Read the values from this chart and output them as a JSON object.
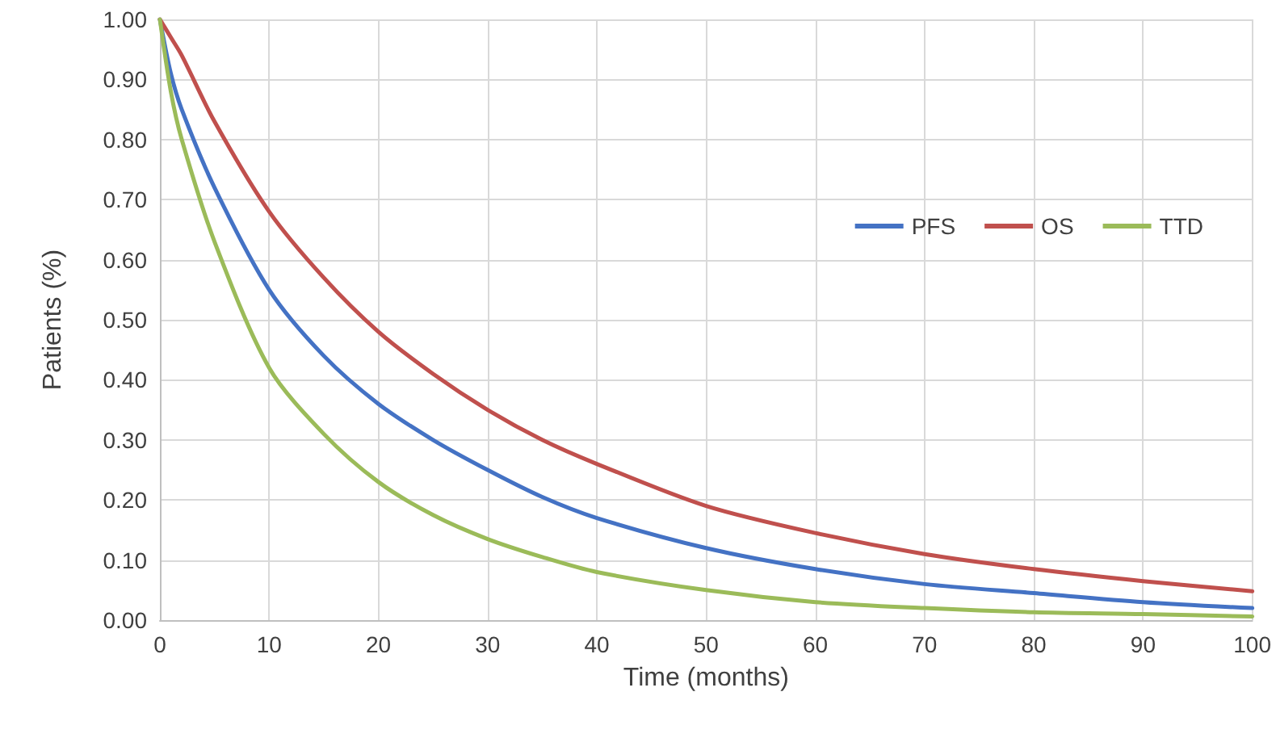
{
  "chart_data": {
    "type": "line",
    "xlabel": "Time (months)",
    "ylabel": "Patients (%)",
    "x": [
      0,
      1,
      2,
      5,
      10,
      15,
      20,
      25,
      30,
      35,
      40,
      50,
      60,
      70,
      80,
      90,
      100
    ],
    "series": [
      {
        "name": "PFS",
        "color": "#4472c4",
        "values": [
          1.0,
          0.91,
          0.85,
          0.72,
          0.55,
          0.44,
          0.36,
          0.3,
          0.25,
          0.205,
          0.17,
          0.12,
          0.085,
          0.06,
          0.045,
          0.03,
          0.02
        ]
      },
      {
        "name": "OS",
        "color": "#c0504d",
        "values": [
          1.0,
          0.97,
          0.94,
          0.83,
          0.68,
          0.57,
          0.48,
          0.41,
          0.35,
          0.3,
          0.26,
          0.19,
          0.145,
          0.11,
          0.085,
          0.065,
          0.048
        ]
      },
      {
        "name": "TTD",
        "color": "#9bbb59",
        "values": [
          1.0,
          0.88,
          0.8,
          0.63,
          0.42,
          0.31,
          0.23,
          0.175,
          0.135,
          0.105,
          0.08,
          0.05,
          0.03,
          0.02,
          0.013,
          0.01,
          0.006
        ]
      }
    ],
    "xlim": [
      0,
      100
    ],
    "xticks": [
      0,
      10,
      20,
      30,
      40,
      50,
      60,
      70,
      80,
      90,
      100
    ],
    "ylim": [
      0,
      1
    ],
    "yticks": [
      {
        "value": 0,
        "label": "0.00"
      },
      {
        "value": 0.1,
        "label": "0.10"
      },
      {
        "value": 0.2,
        "label": "0.20"
      },
      {
        "value": 0.3,
        "label": "0.30"
      },
      {
        "value": 0.4,
        "label": "0.40"
      },
      {
        "value": 0.5,
        "label": "0.50"
      },
      {
        "value": 0.6,
        "label": "0.60"
      },
      {
        "value": 0.7,
        "label": "0.70"
      },
      {
        "value": 0.8,
        "label": "0.80"
      },
      {
        "value": 0.9,
        "label": "0.90"
      },
      {
        "value": 1,
        "label": "1.00"
      }
    ],
    "grid": true,
    "legend": "top right",
    "marker": "none",
    "line_style": "solid"
  }
}
